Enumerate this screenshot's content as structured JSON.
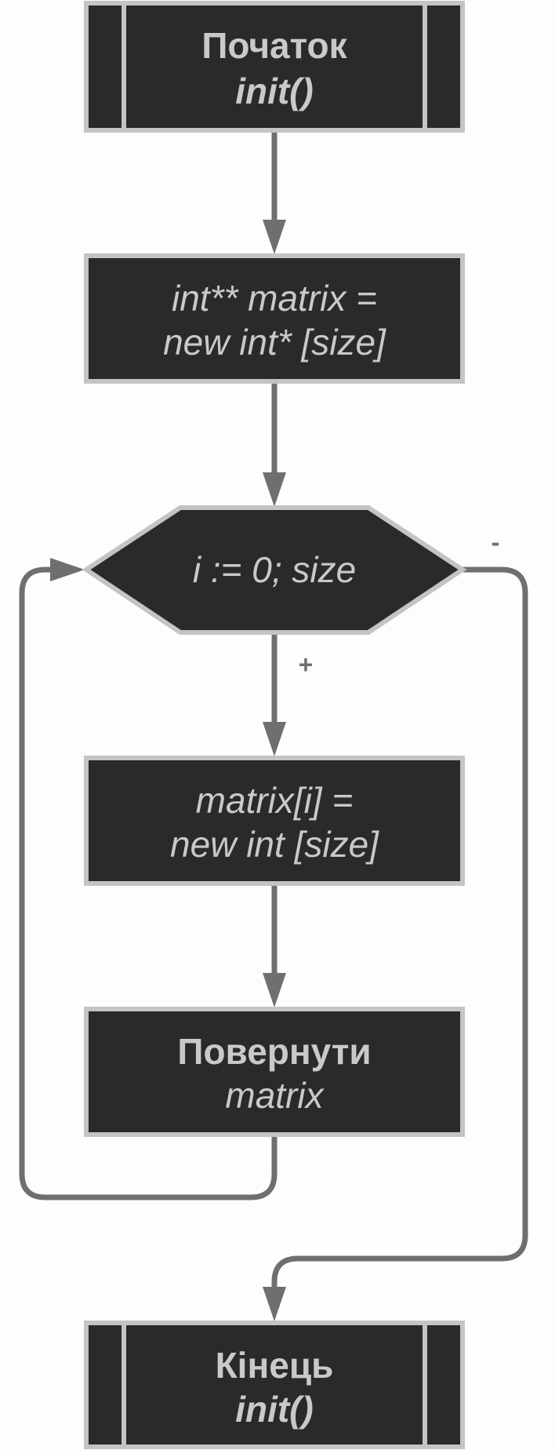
{
  "nodes": {
    "start": {
      "line1": "Початок",
      "line2": "init()"
    },
    "alloc": {
      "line1": "int** matrix =",
      "line2": "new int* [size]"
    },
    "loop": {
      "line1": "i := 0; size"
    },
    "row": {
      "line1": "matrix[i] =",
      "line2": "new int [size]"
    },
    "ret": {
      "line1": "Повернути",
      "line2": "matrix"
    },
    "end": {
      "line1": "Кінець",
      "line2": "init()"
    }
  },
  "edge_labels": {
    "loop_true": "+",
    "loop_false": "-"
  },
  "colors": {
    "node_fill": "#2a2a2a",
    "node_border": "#c4c4c4",
    "node_text": "#c9c9c9",
    "edge": "#6f6f6f",
    "background": "#fdfdfd"
  }
}
